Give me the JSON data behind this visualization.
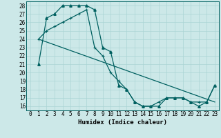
{
  "title": "",
  "xlabel": "Humidex (Indice chaleur)",
  "bg_color": "#cce8e8",
  "grid_color": "#aad4d4",
  "line_color": "#006060",
  "xlim": [
    -0.5,
    23.5
  ],
  "ylim": [
    15.5,
    28.5
  ],
  "yticks": [
    16,
    17,
    18,
    19,
    20,
    21,
    22,
    23,
    24,
    25,
    26,
    27,
    28
  ],
  "xticks": [
    0,
    1,
    2,
    3,
    4,
    5,
    6,
    7,
    8,
    9,
    10,
    11,
    12,
    13,
    14,
    15,
    16,
    17,
    18,
    19,
    20,
    21,
    22,
    23
  ],
  "line1_x": [
    1,
    2,
    3,
    4,
    5,
    6,
    7,
    8,
    9,
    10,
    11,
    12,
    13,
    14,
    15,
    16,
    17,
    18,
    19,
    20,
    21,
    22,
    23
  ],
  "line1_y": [
    21,
    26.5,
    27,
    28,
    28,
    28,
    28,
    27.5,
    23,
    22.5,
    18.5,
    18,
    16.5,
    16,
    16,
    16,
    17,
    17,
    17,
    16.5,
    16,
    16.5,
    18.5
  ],
  "line2_x": [
    1,
    2,
    3,
    4,
    5,
    6,
    7,
    8,
    9,
    10,
    11,
    12,
    13,
    14,
    15,
    16,
    17,
    18,
    19,
    20,
    21,
    22,
    23
  ],
  "line2_y": [
    24,
    25,
    25.5,
    26,
    26.5,
    27,
    27.5,
    23,
    22,
    20,
    19,
    18,
    16.5,
    16,
    16,
    16.5,
    17,
    17,
    17,
    16.5,
    16.5,
    16.5,
    18.5
  ],
  "line3_x": [
    1,
    23
  ],
  "line3_y": [
    24,
    16.5
  ],
  "tick_fontsize": 5.5,
  "xlabel_fontsize": 6.5,
  "xlabel_fontweight": "bold"
}
